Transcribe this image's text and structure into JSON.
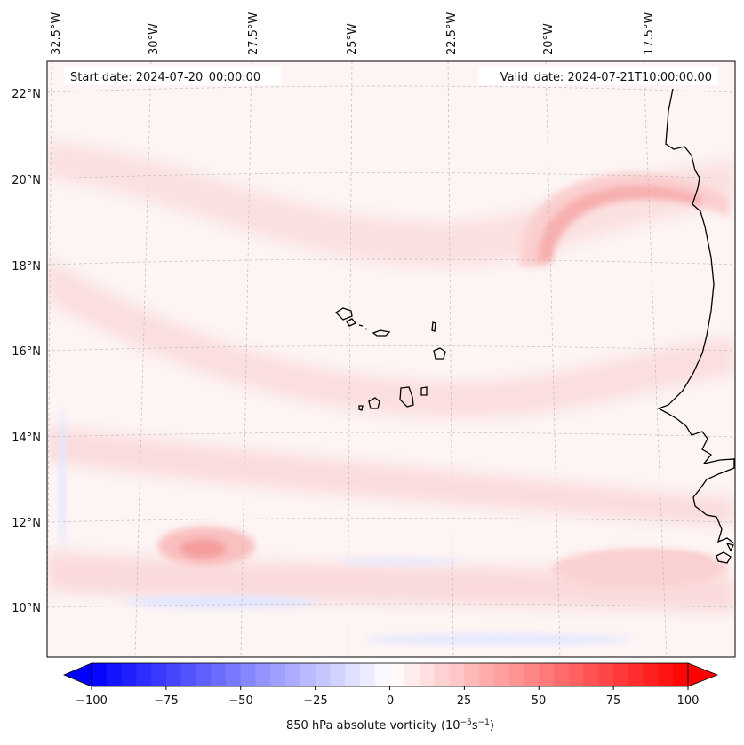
{
  "map": {
    "start_date_text": "Start date: 2024-07-20_00:00:00",
    "valid_date_text": "Valid_date: 2024-07-21T10:00:00.00",
    "lon_labels": [
      "32.5°W",
      "30°W",
      "27.5°W",
      "25°W",
      "22.5°W",
      "20°W",
      "17.5°W"
    ],
    "lat_labels": [
      "22°N",
      "20°N",
      "18°N",
      "16°N",
      "14°N",
      "12°N",
      "10°N"
    ],
    "extent": {
      "lon_min": -33.0,
      "lon_max": -16.0,
      "lat_min": 8.9,
      "lat_max": 22.7
    },
    "coastline_color": "#000000",
    "gridline_color": "#bbbbbb"
  },
  "colorbar": {
    "ticks": [
      "−100",
      "−75",
      "−50",
      "−25",
      "0",
      "25",
      "50",
      "75",
      "100"
    ],
    "min": -100,
    "max": 100,
    "levels": 41,
    "colormap": "bwr",
    "label": "850 hPa absolute vorticity (10",
    "label_exp1": "−5",
    "label_mid": "s",
    "label_exp2": "−1",
    "label_close": ")"
  },
  "field": {
    "background_color": "#fdf4f4",
    "features": [
      {
        "name": "vorticity-band-northeast-arc",
        "level": "moderate-positive",
        "color": "#f8a8a8"
      },
      {
        "name": "vorticity-maximum-west-11N",
        "level": "moderate-positive",
        "color": "#f7a0a0"
      },
      {
        "name": "vorticity-band-southeast-11N",
        "level": "moderate-positive",
        "color": "#f6a0a0"
      },
      {
        "name": "negative-vorticity-streak-south",
        "level": "weak-negative",
        "color": "#dfe3ff"
      }
    ]
  }
}
